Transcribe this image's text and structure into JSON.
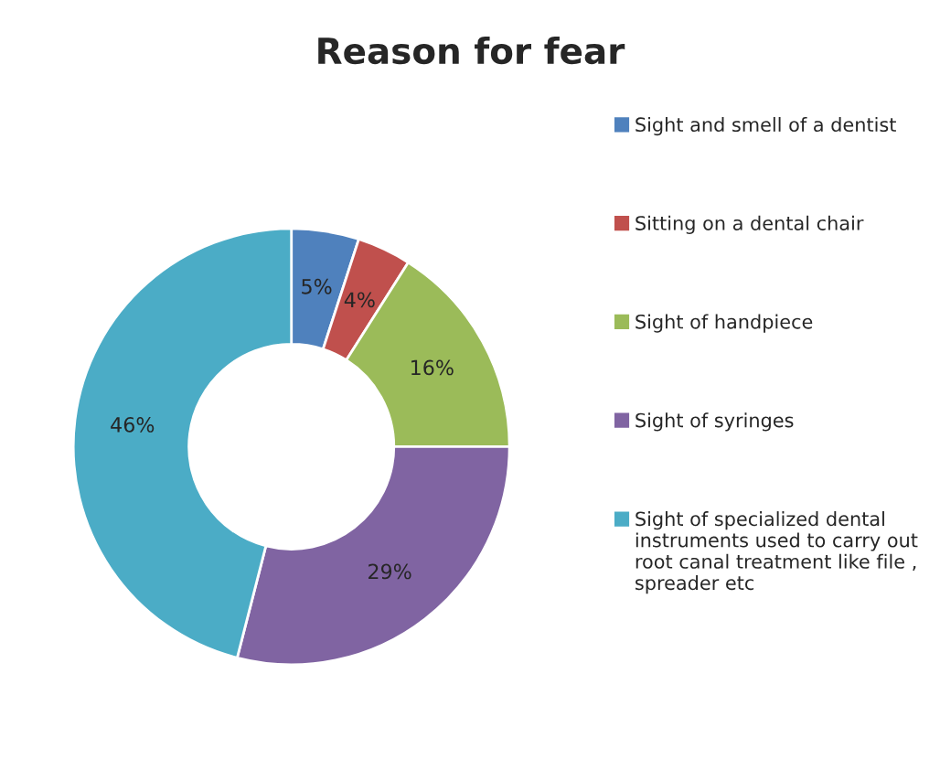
{
  "chart_data": {
    "type": "donut",
    "title": "Reason for fear",
    "categories": [
      "Sight and smell of a dentist",
      "Sitting on a dental chair",
      "Sight of handpiece",
      "Sight of syringes",
      "Sight of specialized dental instruments used to carry out root canal treatment like file , spreader etc"
    ],
    "values": [
      5,
      4,
      16,
      29,
      46
    ],
    "colors": [
      "#4f81bd",
      "#c0504d",
      "#9bbb59",
      "#8064a2",
      "#4bacc6"
    ],
    "value_labels": [
      "5%",
      "4%",
      "16%",
      "29%",
      "46%"
    ],
    "legend": "right"
  }
}
